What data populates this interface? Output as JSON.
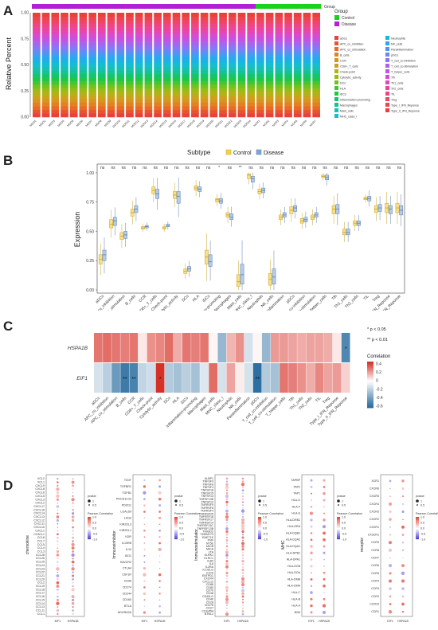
{
  "panel_labels": [
    "A",
    "B",
    "C",
    "D"
  ],
  "colors": {
    "control": "#f3d24a",
    "disease": "#7ea6d8",
    "group_control": "#1bd21b",
    "group_disease": "#b21fd6",
    "heat_pos": "#d73027",
    "heat_neg": "#2c6fa0",
    "dot_pos": "#e8443a",
    "dot_neg": "#3a2bd6"
  },
  "cell_types": [
    "aDCs",
    "APC_co_inhibition",
    "APC_co_stimulation",
    "B_cells",
    "CCR",
    "CD8+_T_cells",
    "Check-point",
    "Cytolytic_activity",
    "DCs",
    "HLA",
    "iDCs",
    "Inflammation-promoting",
    "Macrophages",
    "Mast_cells",
    "MHC_class_I",
    "Neutrophils",
    "NK_cells",
    "Parainflammation",
    "pDCs",
    "T_cell_co-inhibition",
    "T_cell_co-stimulation",
    "T_helper_cells",
    "Tfh",
    "Th1_cells",
    "Th2_cells",
    "TIL",
    "Treg",
    "Type_I_IFN_Reponse",
    "Type_II_IFN_Reponse"
  ],
  "chart_data": [
    {
      "panel": "A",
      "type": "bar",
      "stacked": true,
      "ylabel": "Relative Percent",
      "yticks": [
        "0.00",
        "0.25",
        "0.50",
        "0.75",
        "1.00"
      ],
      "ylim": [
        0,
        1
      ],
      "group_label": "Group",
      "legend_title": "Group",
      "group_legend": [
        "Control",
        "Disease"
      ],
      "samples": [
        "MDD1",
        "MDD2",
        "MDD3",
        "MDD4",
        "MDD5",
        "MDD6",
        "MDD7",
        "MDD8",
        "MDD9",
        "MDD10",
        "MDD11",
        "MDD12",
        "MDD13",
        "MDD14",
        "MDD15",
        "MDD16",
        "MDD17",
        "MDD18",
        "MDD19",
        "MDD20",
        "MDD21",
        "MDD22",
        "MDD23",
        "MDD24",
        "NOR1",
        "NOR2",
        "NOR3",
        "NOR4",
        "NOR5",
        "NOR6",
        "NOR7"
      ],
      "sample_groups": [
        "Disease",
        "Disease",
        "Disease",
        "Disease",
        "Disease",
        "Disease",
        "Disease",
        "Disease",
        "Disease",
        "Disease",
        "Disease",
        "Disease",
        "Disease",
        "Disease",
        "Disease",
        "Disease",
        "Disease",
        "Disease",
        "Disease",
        "Disease",
        "Disease",
        "Disease",
        "Disease",
        "Disease",
        "Control",
        "Control",
        "Control",
        "Control",
        "Control",
        "Control",
        "Control"
      ],
      "layer_colors": [
        "#e8403a",
        "#e8542f",
        "#e96a25",
        "#e48022",
        "#d9941e",
        "#c9a41a",
        "#b4b117",
        "#98bb16",
        "#72c21e",
        "#45c52f",
        "#1ec64b",
        "#13c56f",
        "#13c393",
        "#14c1b4",
        "#15bdd0",
        "#18b5e3",
        "#2aa8ef",
        "#4a98f3",
        "#6c86f5",
        "#8d74f4",
        "#a963ee",
        "#c055e2",
        "#d44cd1",
        "#e246bb",
        "#eb449f",
        "#ef4583",
        "#f04468",
        "#ee4450",
        "#eb3f3c"
      ],
      "layer_shares": [
        0.036,
        0.035,
        0.035,
        0.036,
        0.034,
        0.034,
        0.035,
        0.035,
        0.034,
        0.035,
        0.035,
        0.034,
        0.034,
        0.035,
        0.036,
        0.034,
        0.034,
        0.035,
        0.034,
        0.035,
        0.034,
        0.035,
        0.034,
        0.034,
        0.035,
        0.034,
        0.034,
        0.035,
        0.036
      ]
    },
    {
      "panel": "B",
      "type": "box",
      "legend_title": "Subtype",
      "legend": [
        "Control",
        "Disease"
      ],
      "ylabel": "Expression",
      "yticks": [
        "0.00",
        "0.25",
        "0.50",
        "0.75",
        "1.00"
      ],
      "ylim": [
        0,
        1.02
      ],
      "categories": [
        "aDCs",
        "APC_co_inhibition",
        "APC_co_stimulation",
        "B_cells",
        "CCR",
        "CD8+_T_cells",
        "Check-point",
        "Cytolytic_activity",
        "DCs",
        "HLA",
        "iDCs",
        "Inflammation-promoting",
        "Macrophages",
        "Mast_cells",
        "MHC_class_I",
        "Neutrophils",
        "NK_cells",
        "Parainflammation",
        "pDCs",
        "T_cell_co-inhibition",
        "T_cell_co-stimulation",
        "T_helper_cells",
        "Tfh",
        "Th1_cells",
        "Th2_cells",
        "TIL",
        "Treg",
        "Type_I_IFN_Reponse",
        "Type_II_IFN_Reponse"
      ],
      "significance": [
        "ns",
        "ns",
        "ns",
        "ns",
        "ns",
        "ns",
        "ns",
        "ns",
        "ns",
        "ns",
        "ns",
        "*",
        "ns",
        "**",
        "ns",
        "ns",
        "ns",
        "ns",
        "ns",
        "ns",
        "ns",
        "ns",
        "ns",
        "ns",
        "ns",
        "ns",
        "ns",
        "ns",
        "ns"
      ],
      "control_median": [
        0.26,
        0.56,
        0.46,
        0.66,
        0.53,
        0.85,
        0.53,
        0.81,
        0.16,
        0.87,
        0.28,
        0.77,
        0.64,
        0.07,
        0.98,
        0.84,
        0.09,
        0.62,
        0.68,
        0.59,
        0.62,
        0.97,
        0.69,
        0.49,
        0.57,
        0.78,
        0.69,
        0.7,
        0.7
      ],
      "control_q": [
        [
          0.22,
          0.3
        ],
        [
          0.53,
          0.6
        ],
        [
          0.43,
          0.49
        ],
        [
          0.63,
          0.69
        ],
        [
          0.52,
          0.54
        ],
        [
          0.82,
          0.88
        ],
        [
          0.52,
          0.54
        ],
        [
          0.78,
          0.84
        ],
        [
          0.14,
          0.18
        ],
        [
          0.85,
          0.89
        ],
        [
          0.22,
          0.34
        ],
        [
          0.75,
          0.78
        ],
        [
          0.62,
          0.66
        ],
        [
          0.03,
          0.13
        ],
        [
          0.95,
          0.99
        ],
        [
          0.82,
          0.86
        ],
        [
          0.04,
          0.14
        ],
        [
          0.6,
          0.64
        ],
        [
          0.65,
          0.71
        ],
        [
          0.57,
          0.61
        ],
        [
          0.6,
          0.64
        ],
        [
          0.96,
          0.98
        ],
        [
          0.65,
          0.72
        ],
        [
          0.47,
          0.52
        ],
        [
          0.55,
          0.59
        ],
        [
          0.77,
          0.79
        ],
        [
          0.66,
          0.72
        ],
        [
          0.66,
          0.74
        ],
        [
          0.66,
          0.74
        ]
      ],
      "disease_median": [
        0.3,
        0.59,
        0.47,
        0.69,
        0.54,
        0.82,
        0.55,
        0.8,
        0.18,
        0.86,
        0.24,
        0.76,
        0.62,
        0.13,
        0.95,
        0.85,
        0.11,
        0.64,
        0.7,
        0.6,
        0.64,
        0.96,
        0.69,
        0.49,
        0.57,
        0.78,
        0.7,
        0.69,
        0.68
      ],
      "disease_q": [
        [
          0.25,
          0.34
        ],
        [
          0.55,
          0.62
        ],
        [
          0.44,
          0.5
        ],
        [
          0.66,
          0.72
        ],
        [
          0.53,
          0.55
        ],
        [
          0.78,
          0.86
        ],
        [
          0.54,
          0.56
        ],
        [
          0.74,
          0.84
        ],
        [
          0.16,
          0.2
        ],
        [
          0.84,
          0.88
        ],
        [
          0.2,
          0.3
        ],
        [
          0.74,
          0.78
        ],
        [
          0.6,
          0.65
        ],
        [
          0.05,
          0.22
        ],
        [
          0.92,
          0.97
        ],
        [
          0.83,
          0.87
        ],
        [
          0.05,
          0.18
        ],
        [
          0.62,
          0.66
        ],
        [
          0.67,
          0.72
        ],
        [
          0.58,
          0.62
        ],
        [
          0.62,
          0.66
        ],
        [
          0.94,
          0.98
        ],
        [
          0.65,
          0.73
        ],
        [
          0.47,
          0.52
        ],
        [
          0.55,
          0.59
        ],
        [
          0.76,
          0.8
        ],
        [
          0.67,
          0.73
        ],
        [
          0.65,
          0.72
        ],
        [
          0.64,
          0.72
        ]
      ]
    },
    {
      "panel": "C",
      "type": "heatmap",
      "rows": [
        "HSPA1B",
        "EIF1"
      ],
      "columns": [
        "aDCs",
        "APC_co_inhibition",
        "APC_co_stimulation",
        "B_cells",
        "CCR",
        "CD8+_T_cells",
        "Check-point",
        "Cytolytic_activity",
        "DCs",
        "HLA",
        "iDCs",
        "Inflammation-promoting",
        "Macrophages",
        "Mast_cells",
        "MHC_class_I",
        "Neutrophils",
        "NK_cells",
        "Parainflammation",
        "pDCs",
        "T_cell_co-inhibition",
        "T_cell_co-stimulation",
        "T_helper_cells",
        "Tfh",
        "Th1_cells",
        "Th2_cells",
        "TIL",
        "Treg",
        "Type_I_IFN_Reponse",
        "Type_II_IFN_Reponse"
      ],
      "values": [
        [
          0.3,
          0.32,
          0.3,
          0.28,
          0.3,
          0.05,
          0.24,
          0.26,
          0.32,
          0.18,
          0.3,
          0.28,
          0.3,
          0.02,
          -0.3,
          0.16,
          0.24,
          -0.12,
          0.02,
          -0.3,
          0.22,
          0.22,
          0.2,
          0.18,
          0.2,
          0.2,
          0.18,
          0.05,
          -0.5
        ],
        [
          -0.12,
          -0.2,
          -0.42,
          -0.55,
          -0.52,
          -0.18,
          -0.14,
          0.46,
          -0.22,
          -0.26,
          -0.2,
          -0.26,
          -0.1,
          0.32,
          -0.12,
          0.2,
          0.04,
          -0.12,
          -0.6,
          -0.22,
          -0.26,
          0.3,
          0.28,
          0.24,
          0.18,
          0.26,
          0.2,
          0.22,
          0.1
        ]
      ],
      "stars": [
        [
          "",
          "",
          "",
          "",
          "",
          "",
          "",
          "",
          "",
          "",
          "",
          "",
          "",
          "",
          "",
          "",
          "",
          "",
          "",
          "",
          "",
          "",
          "",
          "",
          "",
          "",
          "",
          "",
          "*"
        ],
        [
          "",
          "",
          "",
          "**",
          "**",
          "",
          "",
          "*",
          "",
          "",
          "",
          "",
          "",
          "",
          "",
          "",
          "",
          "",
          "**",
          "",
          "",
          "",
          "",
          "",
          "",
          "",
          "",
          "",
          ""
        ]
      ],
      "legend_title": "Correlation",
      "legend_ticks": [
        "0.4",
        "0.2",
        "0",
        "-0.2",
        "-0.4",
        "-0.6"
      ],
      "sig_legend": [
        "* p < 0.05",
        "** p < 0.01"
      ]
    },
    {
      "panel": "D",
      "type": "scatter",
      "xlabels": [
        "EIF1",
        "HSPA1B"
      ],
      "subplots": [
        {
          "ylabel": "chemokine",
          "genes": [
            "XCL2",
            "XCL1",
            "CXCL9",
            "CXCL8",
            "CXCL6",
            "CXCL5",
            "CXCL3",
            "CXCL2",
            "CXCL17",
            "CXCL16",
            "CXCL14",
            "CXCL13",
            "CXCL12",
            "CXCL11",
            "CXCL10",
            "CXCL1",
            "CX3CL1",
            "CCL8",
            "CCL7",
            "CCL5",
            "CCL4",
            "CCL3",
            "CCL28",
            "CCL26",
            "CCL25",
            "CCL24",
            "CCL23",
            "CCL22",
            "CCL21",
            "CCL20",
            "CCL2",
            "CCL19",
            "CCL18",
            "CCL17",
            "CCL16",
            "CCL15",
            "CCL14",
            "CCL13",
            "CCL11",
            "CCL1"
          ]
        },
        {
          "ylabel": "Immunoinhibitor",
          "genes": [
            "TIGIT",
            "TGFBR1",
            "TGFB1",
            "PDCD1LG2",
            "PDCD1",
            "LGALS9",
            "LAG3",
            "KIR2DL3",
            "KIR2DL1",
            "KDR",
            "IL10RB",
            "IL10",
            "IDO1",
            "HAVCR2",
            "CTLA4",
            "CSF1R",
            "CD96",
            "CD274",
            "CD244",
            "CD160",
            "BTLA",
            "ADORA2A"
          ]
        },
        {
          "ylabel": "Immunostimulator",
          "genes": [
            "ULBP1",
            "TNFSF9",
            "TNFSF8",
            "TNFSF4",
            "TNFSF18",
            "TNFSF15",
            "TNFSF14",
            "TNFSF13B",
            "TNFSF13",
            "TNFRSF9",
            "TNFRSF8",
            "TNFRSF4",
            "TNFRSF25",
            "TNFRSF18",
            "TNFRSF17",
            "TNFRSF14",
            "TNFRSF13C",
            "TNFRSF13B",
            "TMIGD2",
            "TMEM173",
            "RAET1E",
            "PVR",
            "NT5E",
            "MICB",
            "MICA",
            "LTA",
            "KLRK1",
            "KLRC1",
            "IL6R",
            "IL6",
            "IL2RA",
            "ICOSLG",
            "ICOS",
            "ENTPD1",
            "CXCR4",
            "CXCL12",
            "CD86",
            "CD80",
            "CD70",
            "CD48",
            "CD40LG",
            "CD40",
            "CD28",
            "CD276",
            "CD27",
            "C10orf54",
            "BTNL2"
          ]
        },
        {
          "ylabel": "MHC",
          "genes": [
            "TAPBP",
            "TAP2",
            "TAP1",
            "HLA-G",
            "HLA-F",
            "HLA-E",
            "HLA-DRB1",
            "HLA-DRA",
            "HLA-DQB1",
            "HLA-DQA2",
            "HLA-DQA1",
            "HLA-DPB1",
            "HLA-DPA1",
            "HLA-DOB",
            "HLA-DOA",
            "HLA-DMB",
            "HLA-DMA",
            "HLA-C",
            "HLA-B",
            "HLA-A",
            "B2M"
          ]
        },
        {
          "ylabel": "receptor",
          "genes": [
            "XCR1",
            "CXCR6",
            "CXCR5",
            "CXCR4",
            "CXCR3",
            "CXCR2",
            "CXCR1",
            "CX3CR1",
            "CCR9",
            "CCR8",
            "CCR7",
            "CCR6",
            "CCR5",
            "CCR4",
            "CCR3",
            "CCR2",
            "CCR10",
            "CCR1"
          ]
        }
      ],
      "legend": {
        "size_title": "pvalue",
        "color_title": "Pearson Correlation",
        "color_ticks": [
          "1.0",
          "0.5",
          "0.0",
          "-0.5",
          "-1.0"
        ],
        "size_ticks": [
          "1",
          "0.5"
        ]
      }
    }
  ]
}
